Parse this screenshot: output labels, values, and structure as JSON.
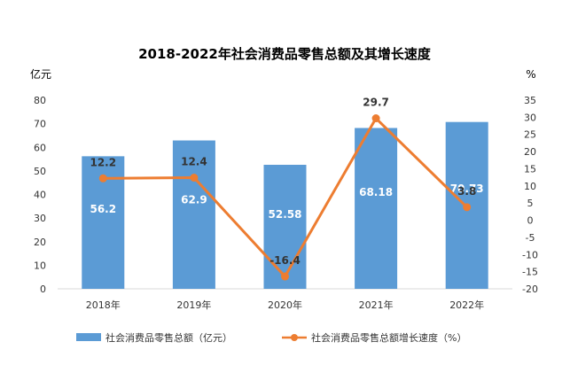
{
  "chart_data": {
    "type": "bar",
    "title": "2018-2022年社会消费品零售总额及其增长速度",
    "categories": [
      "2018年",
      "2019年",
      "2020年",
      "2021年",
      "2022年"
    ],
    "left_axis": {
      "unit": "亿元",
      "ylim": [
        0,
        80
      ],
      "ticks": [
        "0",
        "10",
        "20",
        "30",
        "40",
        "50",
        "60",
        "70",
        "80"
      ]
    },
    "right_axis": {
      "unit": "%",
      "ylim": [
        -20,
        35
      ],
      "ticks": [
        "-20",
        "-15",
        "-10",
        "-5",
        "0",
        "5",
        "10",
        "15",
        "20",
        "25",
        "30",
        "35"
      ]
    },
    "series": [
      {
        "name": "社会消费品零售总额（亿元）",
        "type": "bar",
        "axis": "left",
        "values": [
          56.2,
          62.9,
          52.58,
          68.18,
          70.73
        ],
        "labels": [
          "56.2",
          "62.9",
          "52.58",
          "68.18",
          "70.73"
        ],
        "color": "#5B9BD5"
      },
      {
        "name": "社会消费品零售总额增长速度（%）",
        "type": "line",
        "axis": "right",
        "values": [
          12.2,
          12.4,
          -16.4,
          29.7,
          3.8
        ],
        "labels": [
          "12.2",
          "12.4",
          "-16.4",
          "29.7",
          "3.8"
        ],
        "color": "#ED7D31"
      }
    ],
    "legend": "bottom",
    "grid": false
  }
}
